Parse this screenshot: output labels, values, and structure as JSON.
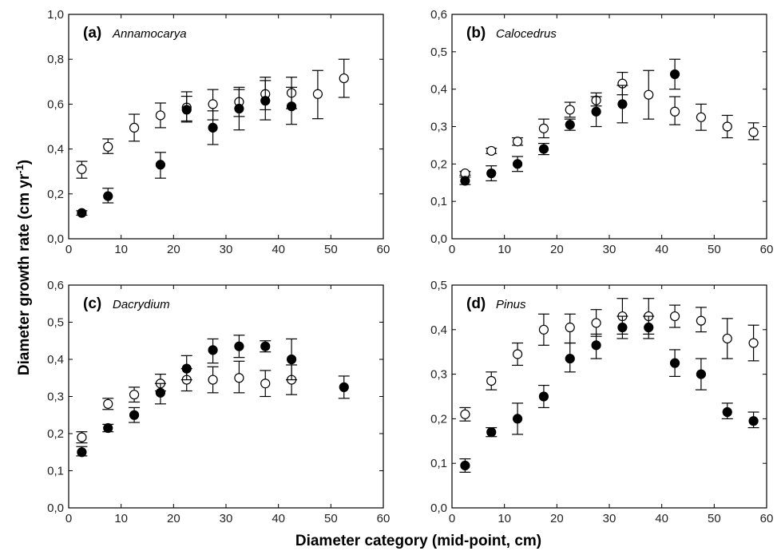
{
  "figure": {
    "ylabel": "Diameter growth rate (cm yr-1)",
    "ylabel_main": "Diameter growth rate (cm yr",
    "ylabel_sup": "-1",
    "ylabel_close": ")",
    "xlabel": "Diameter category (mid-point, cm)",
    "series_styles": {
      "open": "#ffffff",
      "filled": "#000000"
    }
  },
  "chart_data": [
    {
      "type": "scatter",
      "panel": "(a)",
      "genus": "Annamocarya",
      "xlim": [
        0,
        60
      ],
      "ylim": [
        0,
        1.0
      ],
      "xticks": [
        "0",
        "10",
        "20",
        "30",
        "40",
        "50",
        "60"
      ],
      "yticks": [
        "0,0",
        "0,2",
        "0,4",
        "0,6",
        "0,8",
        "1,0"
      ],
      "series": [
        {
          "style": "open",
          "points": [
            {
              "x": 2.5,
              "y": 0.31,
              "lo": 0.27,
              "hi": 0.345
            },
            {
              "x": 7.5,
              "y": 0.41,
              "lo": 0.38,
              "hi": 0.445
            },
            {
              "x": 12.5,
              "y": 0.495,
              "lo": 0.435,
              "hi": 0.555
            },
            {
              "x": 17.5,
              "y": 0.55,
              "lo": 0.495,
              "hi": 0.605
            },
            {
              "x": 22.5,
              "y": 0.585,
              "lo": 0.525,
              "hi": 0.655
            },
            {
              "x": 27.5,
              "y": 0.6,
              "lo": 0.53,
              "hi": 0.665
            },
            {
              "x": 32.5,
              "y": 0.61,
              "lo": 0.545,
              "hi": 0.675
            },
            {
              "x": 37.5,
              "y": 0.645,
              "lo": 0.575,
              "hi": 0.72
            },
            {
              "x": 42.5,
              "y": 0.65,
              "lo": 0.58,
              "hi": 0.72
            },
            {
              "x": 47.5,
              "y": 0.645,
              "lo": 0.535,
              "hi": 0.75
            },
            {
              "x": 52.5,
              "y": 0.715,
              "lo": 0.63,
              "hi": 0.8
            }
          ]
        },
        {
          "style": "filled",
          "points": [
            {
              "x": 2.5,
              "y": 0.115,
              "lo": 0.105,
              "hi": 0.125
            },
            {
              "x": 7.5,
              "y": 0.19,
              "lo": 0.16,
              "hi": 0.225
            },
            {
              "x": 17.5,
              "y": 0.33,
              "lo": 0.27,
              "hi": 0.385
            },
            {
              "x": 22.5,
              "y": 0.575,
              "lo": 0.52,
              "hi": 0.635
            },
            {
              "x": 27.5,
              "y": 0.495,
              "lo": 0.42,
              "hi": 0.57
            },
            {
              "x": 32.5,
              "y": 0.58,
              "lo": 0.485,
              "hi": 0.665
            },
            {
              "x": 37.5,
              "y": 0.615,
              "lo": 0.53,
              "hi": 0.705
            },
            {
              "x": 42.5,
              "y": 0.59,
              "lo": 0.51,
              "hi": 0.675
            }
          ]
        }
      ]
    },
    {
      "type": "scatter",
      "panel": "(b)",
      "genus": "Calocedrus",
      "xlim": [
        0,
        60
      ],
      "ylim": [
        0,
        0.6
      ],
      "xticks": [
        "0",
        "10",
        "20",
        "30",
        "40",
        "50",
        "60"
      ],
      "yticks": [
        "0,0",
        "0,1",
        "0,2",
        "0,3",
        "0,4",
        "0,5",
        "0,6"
      ],
      "series": [
        {
          "style": "open",
          "points": [
            {
              "x": 2.5,
              "y": 0.175,
              "lo": 0.17,
              "hi": 0.18
            },
            {
              "x": 7.5,
              "y": 0.235,
              "lo": 0.228,
              "hi": 0.242
            },
            {
              "x": 12.5,
              "y": 0.26,
              "lo": 0.25,
              "hi": 0.27
            },
            {
              "x": 17.5,
              "y": 0.295,
              "lo": 0.27,
              "hi": 0.32
            },
            {
              "x": 22.5,
              "y": 0.345,
              "lo": 0.325,
              "hi": 0.365
            },
            {
              "x": 27.5,
              "y": 0.37,
              "lo": 0.355,
              "hi": 0.39
            },
            {
              "x": 32.5,
              "y": 0.415,
              "lo": 0.385,
              "hi": 0.445
            },
            {
              "x": 37.5,
              "y": 0.385,
              "lo": 0.32,
              "hi": 0.45
            },
            {
              "x": 42.5,
              "y": 0.34,
              "lo": 0.305,
              "hi": 0.38
            },
            {
              "x": 47.5,
              "y": 0.325,
              "lo": 0.29,
              "hi": 0.36
            },
            {
              "x": 52.5,
              "y": 0.3,
              "lo": 0.27,
              "hi": 0.33
            },
            {
              "x": 57.5,
              "y": 0.285,
              "lo": 0.265,
              "hi": 0.31
            }
          ]
        },
        {
          "style": "filled",
          "points": [
            {
              "x": 2.5,
              "y": 0.155,
              "lo": 0.145,
              "hi": 0.165
            },
            {
              "x": 7.5,
              "y": 0.175,
              "lo": 0.155,
              "hi": 0.195
            },
            {
              "x": 12.5,
              "y": 0.2,
              "lo": 0.18,
              "hi": 0.22
            },
            {
              "x": 17.5,
              "y": 0.24,
              "lo": 0.225,
              "hi": 0.255
            },
            {
              "x": 22.5,
              "y": 0.305,
              "lo": 0.29,
              "hi": 0.32
            },
            {
              "x": 27.5,
              "y": 0.34,
              "lo": 0.3,
              "hi": 0.38
            },
            {
              "x": 32.5,
              "y": 0.36,
              "lo": 0.31,
              "hi": 0.41
            },
            {
              "x": 42.5,
              "y": 0.44,
              "lo": 0.4,
              "hi": 0.48
            }
          ]
        }
      ]
    },
    {
      "type": "scatter",
      "panel": "(c)",
      "genus": "Dacrydium",
      "xlim": [
        0,
        60
      ],
      "ylim": [
        0,
        0.6
      ],
      "xticks": [
        "0",
        "10",
        "20",
        "30",
        "40",
        "50",
        "60"
      ],
      "yticks": [
        "0,0",
        "0,1",
        "0,2",
        "0,3",
        "0,4",
        "0,5",
        "0,6"
      ],
      "series": [
        {
          "style": "open",
          "points": [
            {
              "x": 2.5,
              "y": 0.19,
              "lo": 0.175,
              "hi": 0.205
            },
            {
              "x": 7.5,
              "y": 0.28,
              "lo": 0.265,
              "hi": 0.295
            },
            {
              "x": 12.5,
              "y": 0.305,
              "lo": 0.285,
              "hi": 0.325
            },
            {
              "x": 17.5,
              "y": 0.335,
              "lo": 0.315,
              "hi": 0.36
            },
            {
              "x": 22.5,
              "y": 0.345,
              "lo": 0.315,
              "hi": 0.375
            },
            {
              "x": 27.5,
              "y": 0.345,
              "lo": 0.31,
              "hi": 0.38
            },
            {
              "x": 32.5,
              "y": 0.35,
              "lo": 0.31,
              "hi": 0.395
            },
            {
              "x": 37.5,
              "y": 0.335,
              "lo": 0.3,
              "hi": 0.37
            },
            {
              "x": 42.5,
              "y": 0.345,
              "lo": 0.305,
              "hi": 0.385
            }
          ]
        },
        {
          "style": "filled",
          "points": [
            {
              "x": 2.5,
              "y": 0.15,
              "lo": 0.14,
              "hi": 0.165
            },
            {
              "x": 7.5,
              "y": 0.215,
              "lo": 0.205,
              "hi": 0.225
            },
            {
              "x": 12.5,
              "y": 0.25,
              "lo": 0.23,
              "hi": 0.27
            },
            {
              "x": 17.5,
              "y": 0.31,
              "lo": 0.28,
              "hi": 0.335
            },
            {
              "x": 22.5,
              "y": 0.375,
              "lo": 0.345,
              "hi": 0.41
            },
            {
              "x": 27.5,
              "y": 0.425,
              "lo": 0.39,
              "hi": 0.455
            },
            {
              "x": 32.5,
              "y": 0.435,
              "lo": 0.405,
              "hi": 0.465
            },
            {
              "x": 37.5,
              "y": 0.435,
              "lo": 0.42,
              "hi": 0.45
            },
            {
              "x": 42.5,
              "y": 0.4,
              "lo": 0.345,
              "hi": 0.455
            },
            {
              "x": 52.5,
              "y": 0.325,
              "lo": 0.295,
              "hi": 0.355
            }
          ]
        }
      ]
    },
    {
      "type": "scatter",
      "panel": "(d)",
      "genus": "Pinus",
      "xlim": [
        0,
        60
      ],
      "ylim": [
        0,
        0.5
      ],
      "xticks": [
        "0",
        "10",
        "20",
        "30",
        "40",
        "50",
        "60"
      ],
      "yticks": [
        "0,0",
        "0,1",
        "0,2",
        "0,3",
        "0,4",
        "0,5"
      ],
      "series": [
        {
          "style": "open",
          "points": [
            {
              "x": 2.5,
              "y": 0.21,
              "lo": 0.195,
              "hi": 0.225
            },
            {
              "x": 7.5,
              "y": 0.285,
              "lo": 0.265,
              "hi": 0.305
            },
            {
              "x": 12.5,
              "y": 0.345,
              "lo": 0.32,
              "hi": 0.37
            },
            {
              "x": 17.5,
              "y": 0.4,
              "lo": 0.365,
              "hi": 0.435
            },
            {
              "x": 22.5,
              "y": 0.405,
              "lo": 0.37,
              "hi": 0.435
            },
            {
              "x": 27.5,
              "y": 0.415,
              "lo": 0.385,
              "hi": 0.445
            },
            {
              "x": 32.5,
              "y": 0.43,
              "lo": 0.39,
              "hi": 0.47
            },
            {
              "x": 37.5,
              "y": 0.43,
              "lo": 0.39,
              "hi": 0.47
            },
            {
              "x": 42.5,
              "y": 0.43,
              "lo": 0.405,
              "hi": 0.455
            },
            {
              "x": 47.5,
              "y": 0.42,
              "lo": 0.395,
              "hi": 0.45
            },
            {
              "x": 52.5,
              "y": 0.38,
              "lo": 0.335,
              "hi": 0.425
            },
            {
              "x": 57.5,
              "y": 0.37,
              "lo": 0.33,
              "hi": 0.41
            }
          ]
        },
        {
          "style": "filled",
          "points": [
            {
              "x": 2.5,
              "y": 0.095,
              "lo": 0.08,
              "hi": 0.11
            },
            {
              "x": 7.5,
              "y": 0.17,
              "lo": 0.16,
              "hi": 0.18
            },
            {
              "x": 12.5,
              "y": 0.2,
              "lo": 0.165,
              "hi": 0.235
            },
            {
              "x": 17.5,
              "y": 0.25,
              "lo": 0.225,
              "hi": 0.275
            },
            {
              "x": 22.5,
              "y": 0.335,
              "lo": 0.305,
              "hi": 0.37
            },
            {
              "x": 27.5,
              "y": 0.365,
              "lo": 0.335,
              "hi": 0.39
            },
            {
              "x": 32.5,
              "y": 0.405,
              "lo": 0.38,
              "hi": 0.43
            },
            {
              "x": 37.5,
              "y": 0.405,
              "lo": 0.38,
              "hi": 0.43
            },
            {
              "x": 42.5,
              "y": 0.325,
              "lo": 0.295,
              "hi": 0.355
            },
            {
              "x": 47.5,
              "y": 0.3,
              "lo": 0.265,
              "hi": 0.335
            },
            {
              "x": 52.5,
              "y": 0.215,
              "lo": 0.2,
              "hi": 0.235
            },
            {
              "x": 57.5,
              "y": 0.195,
              "lo": 0.18,
              "hi": 0.215
            }
          ]
        }
      ]
    }
  ]
}
